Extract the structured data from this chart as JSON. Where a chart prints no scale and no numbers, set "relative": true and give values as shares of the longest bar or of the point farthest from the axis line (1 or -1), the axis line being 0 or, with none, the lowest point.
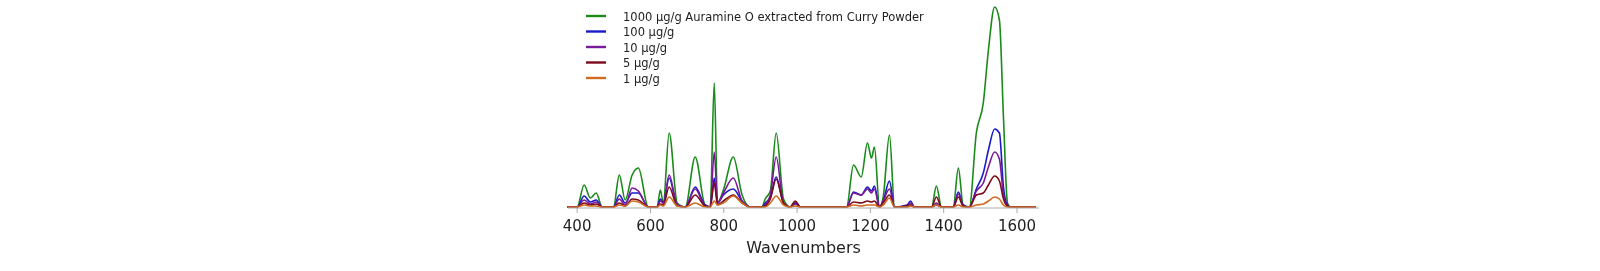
{
  "chart_data": {
    "type": "line",
    "relative": true,
    "xlabel": "Wavenumbers",
    "xlim": [
      375,
      1660
    ],
    "xticks": [
      400,
      600,
      800,
      1000,
      1200,
      1400,
      1600
    ],
    "legend": "top left",
    "grid": false,
    "x": [
      375,
      400,
      419,
      436,
      452,
      468,
      499,
      515,
      531,
      550,
      567,
      594,
      618,
      627,
      635,
      651,
      673,
      695,
      722,
      749,
      763,
      774,
      783,
      799,
      826,
      850,
      872,
      904,
      913,
      927,
      943,
      963,
      981,
      995,
      1009,
      1135,
      1154,
      1175,
      1192,
      1203,
      1211,
      1225,
      1235,
      1252,
      1266,
      1300,
      1310,
      1320,
      1367,
      1380,
      1394,
      1426,
      1440,
      1453,
      1470,
      1489,
      1508,
      1522,
      1539,
      1552,
      1563,
      1574,
      1582,
      1650
    ],
    "series": [
      {
        "name": "1000 μg/g Auramine O extracted from Curry Powder",
        "color": "#1a8a1a",
        "values": [
          0,
          0,
          0.11,
          0.045,
          0.07,
          0,
          0,
          0.16,
          0.035,
          0.16,
          0.195,
          0,
          0,
          0.085,
          0.02,
          0.37,
          0.02,
          0,
          0.25,
          0.01,
          0,
          0.62,
          0.02,
          0.085,
          0.25,
          0.06,
          0,
          0,
          0.04,
          0.08,
          0.37,
          0.04,
          0,
          0.02,
          0,
          0,
          0.21,
          0.15,
          0.32,
          0.245,
          0.3,
          0,
          0.05,
          0.36,
          0,
          0,
          0.01,
          0,
          0,
          0.105,
          0,
          0,
          0.195,
          0.01,
          0,
          0.37,
          0.52,
          0.785,
          1,
          0.935,
          0.45,
          0.02,
          0,
          0
        ]
      },
      {
        "name": "100 μg/g",
        "color": "#1a1acc",
        "values": [
          0,
          0,
          0.055,
          0.025,
          0.035,
          0,
          0,
          0.06,
          0.02,
          0.07,
          0.07,
          0,
          0,
          0.04,
          0.02,
          0.145,
          0.01,
          0,
          0.1,
          0.01,
          0,
          0.145,
          0.02,
          0.06,
          0.09,
          0.03,
          0,
          0,
          0.02,
          0.05,
          0.15,
          0.02,
          0,
          0.02,
          0,
          0,
          0.075,
          0.06,
          0.1,
          0.08,
          0.105,
          0,
          0.03,
          0.13,
          0,
          0.01,
          0.03,
          0,
          0,
          0.01,
          0,
          0,
          0.075,
          0.01,
          0,
          0.09,
          0.17,
          0.285,
          0.39,
          0.37,
          0.1,
          0.01,
          0,
          0
        ]
      },
      {
        "name": "10 μg/g",
        "color": "#7a1a9a",
        "values": [
          0,
          0,
          0.035,
          0.015,
          0.025,
          0,
          0,
          0.04,
          0.01,
          0.095,
          0.08,
          0,
          0,
          0.03,
          0.02,
          0.16,
          0.01,
          0,
          0.09,
          0.005,
          0,
          0.275,
          0.02,
          0.07,
          0.145,
          0.03,
          0,
          0,
          0.01,
          0.06,
          0.25,
          0.02,
          0,
          0.015,
          0,
          0,
          0.07,
          0.06,
          0.09,
          0.07,
          0.09,
          0,
          0.03,
          0.09,
          0,
          0.005,
          0.02,
          0,
          0,
          0.02,
          0,
          0,
          0.065,
          0.005,
          0,
          0.08,
          0.12,
          0.2,
          0.275,
          0.24,
          0.06,
          0.005,
          0,
          0
        ]
      },
      {
        "name": "5 μg/g",
        "color": "#7a0a1a",
        "values": [
          0,
          0,
          0.02,
          0.01,
          0.015,
          0,
          0,
          0.02,
          0.005,
          0.04,
          0.035,
          0,
          0,
          0.015,
          0.01,
          0.1,
          0.005,
          0,
          0.06,
          0.005,
          0,
          0.12,
          0.01,
          0.03,
          0.06,
          0.02,
          0,
          0,
          0.005,
          0.04,
          0.14,
          0.02,
          0,
          0.03,
          0,
          0,
          0.025,
          0.02,
          0.03,
          0.025,
          0.03,
          0,
          0.02,
          0.06,
          0,
          0.005,
          0.01,
          0,
          0,
          0.05,
          0,
          0,
          0.05,
          0.005,
          0,
          0.06,
          0.07,
          0.11,
          0.155,
          0.13,
          0.04,
          0.005,
          0,
          0
        ]
      },
      {
        "name": "1 μg/g",
        "color": "#d06a20",
        "values": [
          0,
          0,
          0.01,
          0.005,
          0.005,
          0,
          0,
          0.01,
          0.005,
          0.03,
          0.025,
          0,
          0,
          0.01,
          0.005,
          0.05,
          0.005,
          0,
          0.02,
          0,
          0,
          0.03,
          0.01,
          0.02,
          0.055,
          0.02,
          0,
          0,
          0,
          0.02,
          0.055,
          0.01,
          0,
          0.005,
          0,
          0,
          0.01,
          0.005,
          0.01,
          0.01,
          0.01,
          0,
          0.01,
          0.045,
          0,
          0,
          0.005,
          0,
          0,
          0.01,
          0,
          0,
          0.01,
          0,
          0,
          0.01,
          0.015,
          0.03,
          0.05,
          0.04,
          0.01,
          0,
          0,
          0
        ]
      }
    ]
  }
}
